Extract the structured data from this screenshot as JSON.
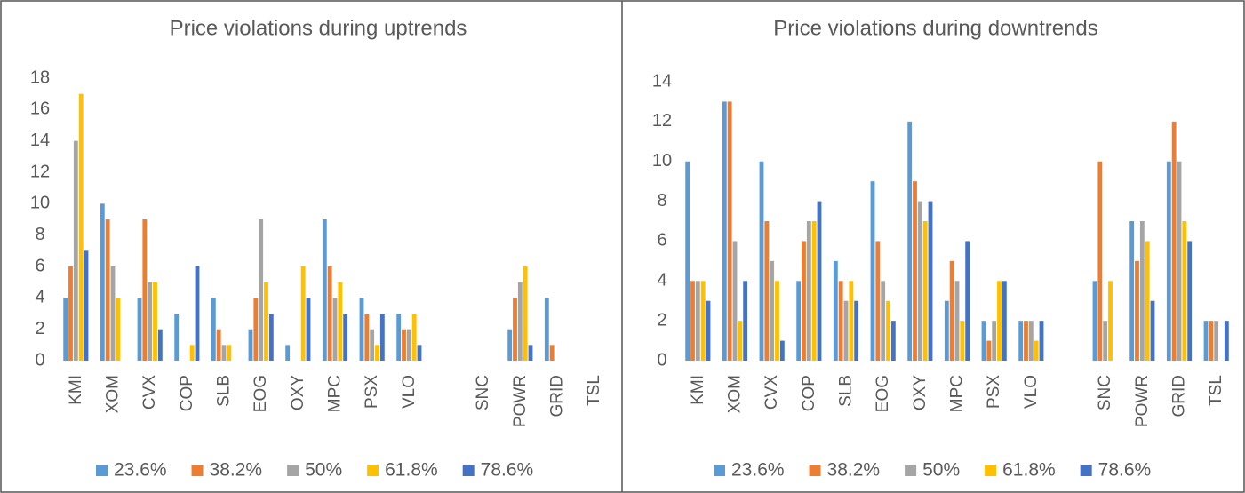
{
  "chart_data": [
    {
      "type": "bar",
      "title": "Price violations during uptrends",
      "categories": [
        "KMI",
        "XOM",
        "CVX",
        "COP",
        "SLB",
        "EOG",
        "OXY",
        "MPC",
        "PSX",
        "VLO",
        null,
        "SNC",
        "POWR",
        "GRID",
        "TSL"
      ],
      "series": [
        {
          "name": "23.6%",
          "color": "#5b9bd5",
          "values": [
            4,
            10,
            4,
            3,
            4,
            2,
            1,
            9,
            4,
            3,
            null,
            0,
            2,
            4,
            0
          ]
        },
        {
          "name": "38.2%",
          "color": "#ed7d31",
          "values": [
            6,
            9,
            9,
            0,
            2,
            4,
            0,
            6,
            3,
            2,
            null,
            0,
            4,
            1,
            0
          ]
        },
        {
          "name": "50%",
          "color": "#a5a5a5",
          "values": [
            14,
            6,
            5,
            0,
            1,
            9,
            0,
            4,
            2,
            2,
            null,
            0,
            5,
            0,
            0
          ]
        },
        {
          "name": "61.8%",
          "color": "#ffc000",
          "values": [
            17,
            4,
            5,
            1,
            1,
            5,
            6,
            5,
            1,
            3,
            null,
            0,
            6,
            0,
            0
          ]
        },
        {
          "name": "78.6%",
          "color": "#4472c4",
          "values": [
            7,
            0,
            2,
            6,
            0,
            3,
            4,
            3,
            3,
            1,
            null,
            0,
            1,
            0,
            0
          ]
        }
      ],
      "ylim": [
        0,
        18
      ],
      "yticks": [
        0,
        2,
        4,
        6,
        8,
        10,
        12,
        14,
        16,
        18
      ],
      "legend": "bottom"
    },
    {
      "type": "bar",
      "title": "Price violations during downtrends",
      "categories": [
        "KMI",
        "XOM",
        "CVX",
        "COP",
        "SLB",
        "EOG",
        "OXY",
        "MPC",
        "PSX",
        "VLO",
        null,
        "SNC",
        "POWR",
        "GRID",
        "TSL"
      ],
      "series": [
        {
          "name": "23.6%",
          "color": "#5b9bd5",
          "values": [
            10,
            13,
            10,
            4,
            5,
            9,
            12,
            3,
            2,
            2,
            null,
            4,
            7,
            10,
            2
          ]
        },
        {
          "name": "38.2%",
          "color": "#ed7d31",
          "values": [
            4,
            13,
            7,
            6,
            4,
            6,
            9,
            5,
            1,
            2,
            null,
            10,
            5,
            12,
            2
          ]
        },
        {
          "name": "50%",
          "color": "#a5a5a5",
          "values": [
            4,
            6,
            5,
            7,
            3,
            4,
            8,
            4,
            2,
            2,
            null,
            2,
            7,
            10,
            2
          ]
        },
        {
          "name": "61.8%",
          "color": "#ffc000",
          "values": [
            4,
            2,
            4,
            7,
            4,
            3,
            7,
            2,
            4,
            1,
            null,
            4,
            6,
            7,
            0
          ]
        },
        {
          "name": "78.6%",
          "color": "#4472c4",
          "values": [
            3,
            4,
            1,
            8,
            3,
            2,
            8,
            6,
            4,
            2,
            null,
            0,
            3,
            6,
            2
          ]
        }
      ],
      "ylim": [
        0,
        14
      ],
      "yticks": [
        0,
        2,
        4,
        6,
        8,
        10,
        12,
        14
      ],
      "legend": "bottom"
    }
  ]
}
